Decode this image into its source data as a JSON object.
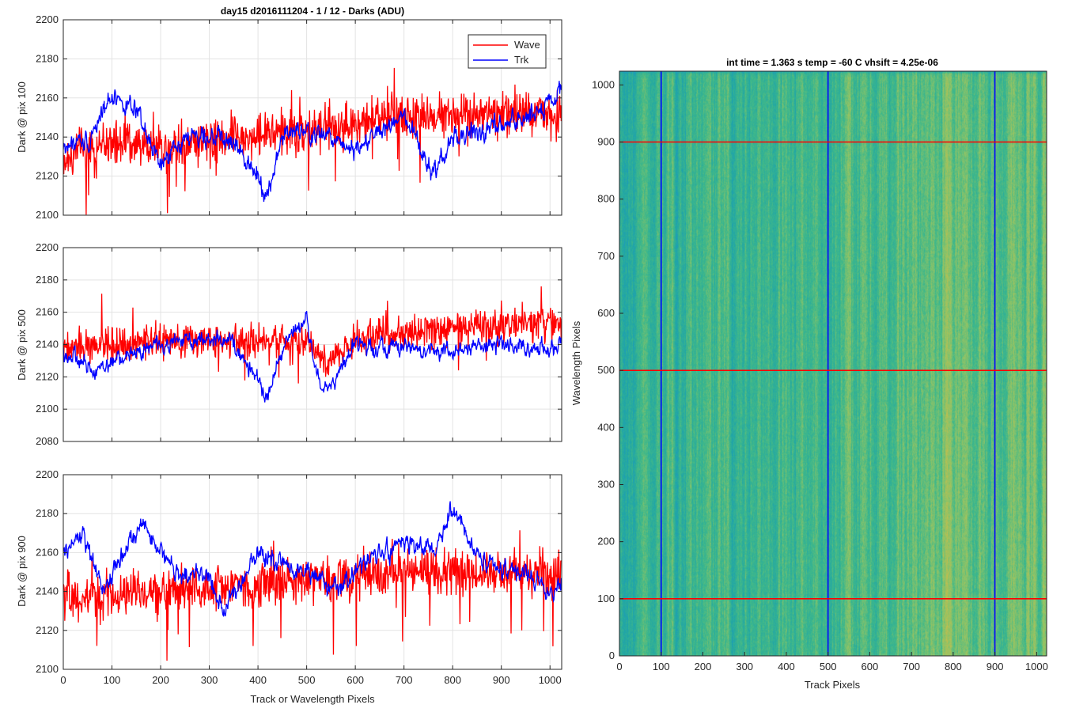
{
  "chart_data": [
    {
      "type": "line",
      "title": "day15 d2016111204 - 1 / 12 - Darks (ADU)",
      "xlabel": "",
      "ylabel": "Dark @ pix 100",
      "xlim": [
        0,
        1024
      ],
      "ylim": [
        2100,
        2200
      ],
      "yticks": [
        2100,
        2120,
        2140,
        2160,
        2180,
        2200
      ],
      "xticks": [
        0,
        100,
        200,
        300,
        400,
        500,
        600,
        700,
        800,
        900,
        1000
      ],
      "show_xtick_labels": false,
      "grid": true,
      "legend": {
        "position": "top-right",
        "entries": [
          "Wave",
          "Trk"
        ]
      },
      "series": [
        {
          "name": "Wave",
          "color": "#ff0000",
          "anchors_x": [
            0,
            100,
            200,
            300,
            400,
            500,
            600,
            700,
            800,
            900,
            1000,
            1023
          ],
          "anchors_y": [
            2130,
            2137,
            2136,
            2139,
            2141,
            2143,
            2147,
            2150,
            2152,
            2153,
            2153,
            2150
          ],
          "noise": 10
        },
        {
          "name": "Trk",
          "color": "#0000ff",
          "anchors_x": [
            0,
            50,
            100,
            150,
            200,
            250,
            300,
            350,
            400,
            420,
            450,
            500,
            550,
            600,
            650,
            700,
            760,
            800,
            850,
            900,
            950,
            1023
          ],
          "anchors_y": [
            2135,
            2138,
            2162,
            2152,
            2125,
            2140,
            2141,
            2136,
            2122,
            2108,
            2142,
            2142,
            2140,
            2134,
            2142,
            2150,
            2120,
            2140,
            2142,
            2146,
            2150,
            2162
          ],
          "noise": 4
        }
      ]
    },
    {
      "type": "line",
      "title": "",
      "xlabel": "",
      "ylabel": "Dark @ pix 500",
      "xlim": [
        0,
        1024
      ],
      "ylim": [
        2080,
        2200
      ],
      "yticks": [
        2080,
        2100,
        2120,
        2140,
        2160,
        2180,
        2200
      ],
      "xticks": [
        0,
        100,
        200,
        300,
        400,
        500,
        600,
        700,
        800,
        900,
        1000
      ],
      "show_xtick_labels": false,
      "grid": true,
      "series": [
        {
          "name": "Wave",
          "color": "#ff0000",
          "anchors_x": [
            0,
            100,
            200,
            300,
            400,
            500,
            540,
            600,
            700,
            800,
            900,
            1000,
            1023
          ],
          "anchors_y": [
            2138,
            2140,
            2142,
            2142,
            2142,
            2142,
            2128,
            2144,
            2148,
            2150,
            2152,
            2153,
            2152
          ],
          "noise": 9
        },
        {
          "name": "Trk",
          "color": "#0000ff",
          "anchors_x": [
            0,
            60,
            120,
            200,
            300,
            350,
            420,
            460,
            500,
            530,
            560,
            600,
            700,
            800,
            900,
            1023
          ],
          "anchors_y": [
            2135,
            2125,
            2132,
            2140,
            2145,
            2140,
            2108,
            2145,
            2155,
            2110,
            2120,
            2140,
            2138,
            2136,
            2140,
            2138
          ],
          "noise": 4
        }
      ]
    },
    {
      "type": "line",
      "title": "",
      "xlabel": "Track or Wavelength Pixels",
      "ylabel": "Dark @ pix 900",
      "xlim": [
        0,
        1024
      ],
      "ylim": [
        2100,
        2200
      ],
      "yticks": [
        2100,
        2120,
        2140,
        2160,
        2180,
        2200
      ],
      "xticks": [
        0,
        100,
        200,
        300,
        400,
        500,
        600,
        700,
        800,
        900,
        1000
      ],
      "show_xtick_labels": true,
      "grid": true,
      "series": [
        {
          "name": "Wave",
          "color": "#ff0000",
          "anchors_x": [
            0,
            100,
            200,
            300,
            400,
            500,
            600,
            700,
            800,
            900,
            1000,
            1023
          ],
          "anchors_y": [
            2136,
            2138,
            2140,
            2142,
            2144,
            2146,
            2148,
            2150,
            2150,
            2150,
            2148,
            2146
          ],
          "noise": 10
        },
        {
          "name": "Trk",
          "color": "#0000ff",
          "anchors_x": [
            0,
            40,
            80,
            160,
            230,
            300,
            330,
            400,
            450,
            500,
            560,
            620,
            700,
            760,
            800,
            850,
            900,
            960,
            1000,
            1023
          ],
          "anchors_y": [
            2158,
            2170,
            2140,
            2175,
            2150,
            2148,
            2130,
            2160,
            2155,
            2150,
            2140,
            2155,
            2165,
            2160,
            2182,
            2158,
            2150,
            2150,
            2138,
            2145
          ],
          "noise": 4
        }
      ]
    },
    {
      "type": "heatmap",
      "title": "int time = 1.363 s   temp = -60 C   vhsift = 4.25e-06",
      "xlabel": "Track Pixels",
      "ylabel": "Wavelength Pixels",
      "xlim": [
        0,
        1024
      ],
      "ylim": [
        0,
        1024
      ],
      "xticks": [
        0,
        100,
        200,
        300,
        400,
        500,
        600,
        700,
        800,
        900,
        1000
      ],
      "yticks": [
        0,
        100,
        200,
        300,
        400,
        500,
        600,
        700,
        800,
        900,
        1000
      ],
      "colormap": [
        "#1a8fd0",
        "#21a6a6",
        "#3fb88a",
        "#8cc368",
        "#c9bd4a"
      ],
      "marker_lines_vertical": {
        "x": [
          100,
          500,
          900
        ],
        "color": "#0000ff"
      },
      "marker_lines_horizontal": {
        "y": [
          100,
          500,
          900
        ],
        "color": "#ff0000"
      }
    }
  ]
}
